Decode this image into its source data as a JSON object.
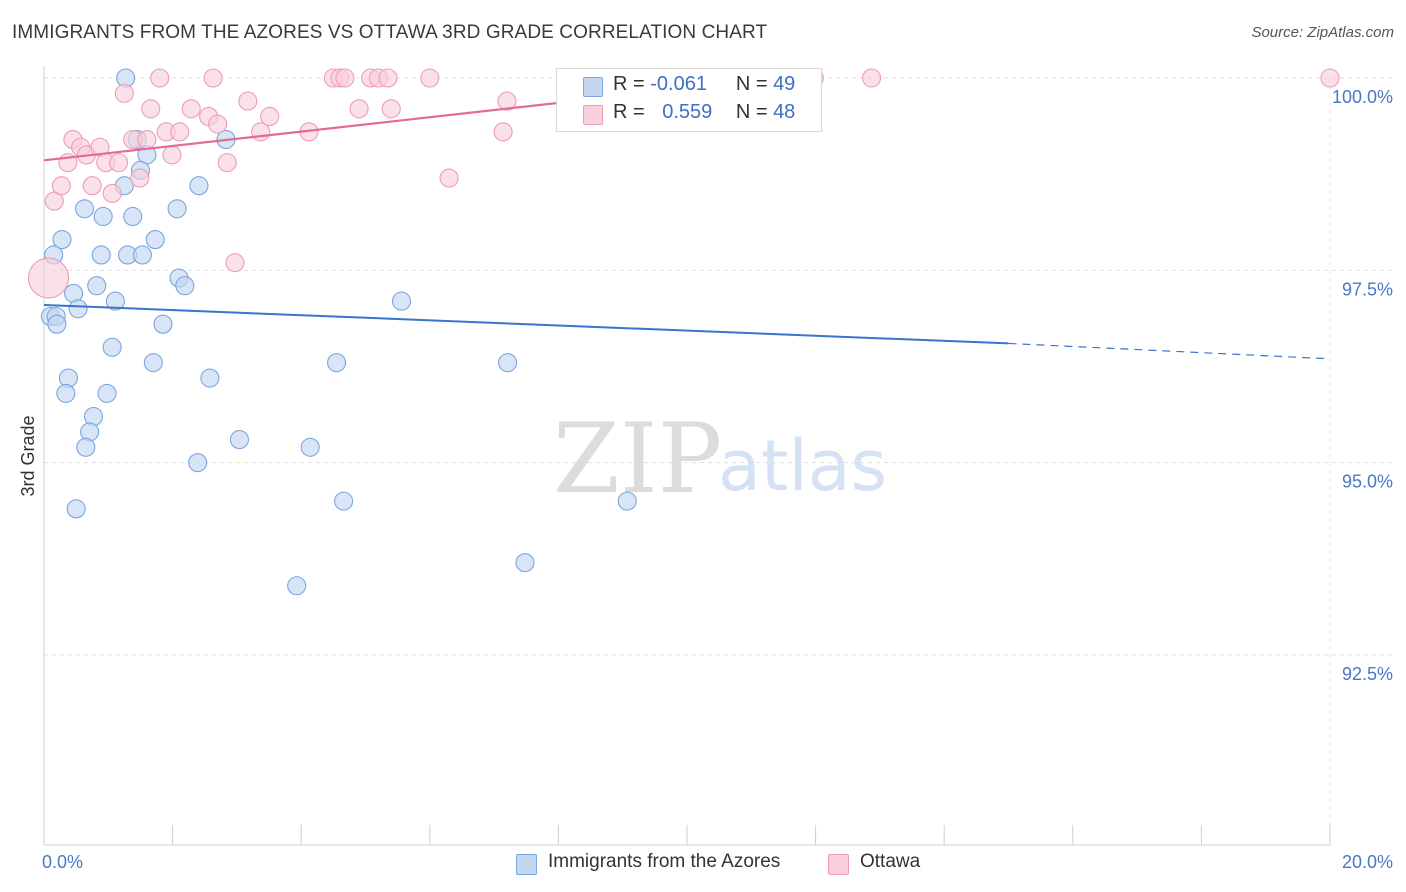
{
  "title": "IMMIGRANTS FROM THE AZORES VS OTTAWA 3RD GRADE CORRELATION CHART",
  "source": "Source: ZipAtlas.com",
  "watermark": {
    "zip": "ZIP",
    "atlas": "atlas"
  },
  "legend": {
    "series1": {
      "r_label": "R =",
      "r_value": "-0.061",
      "n_label": "N =",
      "n_value": "49"
    },
    "series2": {
      "r_label": "R =",
      "r_value": "0.559",
      "n_label": "N =",
      "n_value": "48"
    }
  },
  "chart_data": {
    "type": "scatter",
    "title": "IMMIGRANTS FROM THE AZORES VS OTTAWA 3RD GRADE CORRELATION CHART",
    "xlabel": "",
    "ylabel": "3rd Grade",
    "xlim": [
      0.0,
      20.0
    ],
    "ylim": [
      90.0,
      100.3
    ],
    "x_tick_labels": [
      "0.0%",
      "20.0%"
    ],
    "y_ticks": [
      {
        "value": 92.5,
        "label": "92.5%"
      },
      {
        "value": 95.0,
        "label": "95.0%"
      },
      {
        "value": 97.5,
        "label": "97.5%"
      },
      {
        "value": 100.0,
        "label": "100.0%"
      }
    ],
    "grid": true,
    "series": [
      {
        "name": "Immigrants from the Azores",
        "color": "#7aa6e0",
        "fill": "#c3d7f1",
        "points": [
          [
            1.27,
            100.0
          ],
          [
            1.45,
            99.2
          ],
          [
            1.6,
            99.0
          ],
          [
            1.5,
            98.8
          ],
          [
            1.25,
            98.6
          ],
          [
            0.63,
            98.3
          ],
          [
            0.92,
            98.2
          ],
          [
            1.38,
            98.2
          ],
          [
            2.07,
            98.3
          ],
          [
            2.41,
            98.6
          ],
          [
            2.83,
            99.2
          ],
          [
            0.28,
            97.9
          ],
          [
            0.15,
            97.7
          ],
          [
            0.89,
            97.7
          ],
          [
            1.3,
            97.7
          ],
          [
            1.53,
            97.7
          ],
          [
            1.73,
            97.9
          ],
          [
            2.1,
            97.4
          ],
          [
            2.19,
            97.3
          ],
          [
            0.46,
            97.2
          ],
          [
            0.82,
            97.3
          ],
          [
            1.11,
            97.1
          ],
          [
            0.53,
            97.0
          ],
          [
            0.1,
            96.9
          ],
          [
            0.19,
            96.9
          ],
          [
            0.2,
            96.8
          ],
          [
            1.85,
            96.8
          ],
          [
            0.38,
            96.1
          ],
          [
            0.34,
            95.9
          ],
          [
            0.98,
            95.9
          ],
          [
            1.06,
            96.5
          ],
          [
            1.7,
            96.3
          ],
          [
            2.58,
            96.1
          ],
          [
            4.55,
            96.3
          ],
          [
            3.04,
            95.3
          ],
          [
            0.77,
            95.6
          ],
          [
            0.71,
            95.4
          ],
          [
            0.65,
            95.2
          ],
          [
            2.39,
            95.0
          ],
          [
            4.14,
            95.2
          ],
          [
            0.5,
            94.4
          ],
          [
            4.66,
            94.5
          ],
          [
            3.93,
            93.4
          ],
          [
            5.56,
            97.1
          ],
          [
            7.21,
            96.3
          ],
          [
            7.48,
            93.7
          ],
          [
            9.07,
            94.5
          ],
          [
            9.06,
            100.0
          ],
          [
            11.09,
            100.0
          ]
        ],
        "trend": {
          "x": [
            0.0,
            15.0
          ],
          "y": [
            97.05,
            96.55
          ],
          "dashed_to": [
            20.0,
            96.35
          ]
        }
      },
      {
        "name": "Ottawa",
        "color": "#ee9cb6",
        "fill": "#f8cfdc",
        "points": [
          [
            0.07,
            97.4
          ],
          [
            0.16,
            98.4
          ],
          [
            0.27,
            98.6
          ],
          [
            0.37,
            98.9
          ],
          [
            0.45,
            99.2
          ],
          [
            0.57,
            99.1
          ],
          [
            0.66,
            99.0
          ],
          [
            0.75,
            98.6
          ],
          [
            0.87,
            99.1
          ],
          [
            0.96,
            98.9
          ],
          [
            1.06,
            98.5
          ],
          [
            1.16,
            98.9
          ],
          [
            1.25,
            99.8
          ],
          [
            1.38,
            99.2
          ],
          [
            1.49,
            98.7
          ],
          [
            1.6,
            99.2
          ],
          [
            1.66,
            99.6
          ],
          [
            1.8,
            100.0
          ],
          [
            1.9,
            99.3
          ],
          [
            1.99,
            99.0
          ],
          [
            2.11,
            99.3
          ],
          [
            2.29,
            99.6
          ],
          [
            2.56,
            99.5
          ],
          [
            2.63,
            100.0
          ],
          [
            2.7,
            99.4
          ],
          [
            2.85,
            98.9
          ],
          [
            2.97,
            97.6
          ],
          [
            3.17,
            99.7
          ],
          [
            3.37,
            99.3
          ],
          [
            3.51,
            99.5
          ],
          [
            4.12,
            99.3
          ],
          [
            4.5,
            100.0
          ],
          [
            4.6,
            100.0
          ],
          [
            4.68,
            100.0
          ],
          [
            4.9,
            99.6
          ],
          [
            5.08,
            100.0
          ],
          [
            5.2,
            100.0
          ],
          [
            5.35,
            100.0
          ],
          [
            5.4,
            99.6
          ],
          [
            6.0,
            100.0
          ],
          [
            6.3,
            98.7
          ],
          [
            7.14,
            99.3
          ],
          [
            7.2,
            99.7
          ],
          [
            9.0,
            100.0
          ],
          [
            10.13,
            100.0
          ],
          [
            11.98,
            100.0
          ],
          [
            12.87,
            100.0
          ],
          [
            20.0,
            100.0
          ]
        ],
        "trend": {
          "x": [
            0.0,
            12.0
          ],
          "y": [
            98.93,
            100.05
          ]
        }
      }
    ]
  }
}
